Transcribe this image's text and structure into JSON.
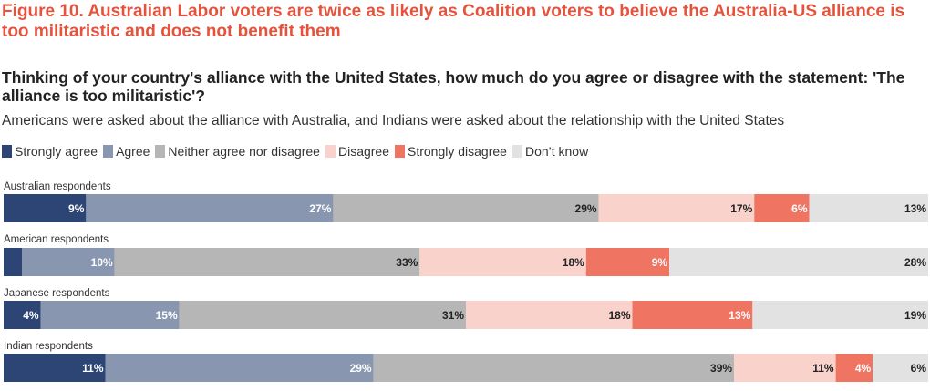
{
  "title": "Figure 10. Australian Labor voters are twice as likely as Coalition voters to believe the Australia-US alliance is too militaristic and does not benefit them",
  "question": "Thinking of your country's alliance with the United States, how much do you agree or disagree with the statement: 'The alliance is too militaristic'?",
  "subtitle": "Americans were asked about the alliance with Australia, and Indians were asked about the relationship with the United States",
  "legend": [
    {
      "label": "Strongly agree",
      "color": "#2d4575"
    },
    {
      "label": "Agree",
      "color": "#8896b0"
    },
    {
      "label": "Neither agree nor disagree",
      "color": "#b6b6b6"
    },
    {
      "label": "Disagree",
      "color": "#f9d2cc"
    },
    {
      "label": "Strongly disagree",
      "color": "#f07462"
    },
    {
      "label": "Don’t know",
      "color": "#e2e2e2"
    }
  ],
  "chart_data": {
    "type": "bar",
    "orientation": "horizontal-stacked-100",
    "categories": [
      "Australian respondents",
      "American respondents",
      "Japanese respondents",
      "Indian respondents"
    ],
    "series": [
      {
        "name": "Strongly agree",
        "values": [
          9,
          2,
          4,
          11
        ],
        "labels": [
          "9%",
          "",
          "4%",
          "11%"
        ]
      },
      {
        "name": "Agree",
        "values": [
          27,
          10,
          15,
          29
        ],
        "labels": [
          "27%",
          "10%",
          "15%",
          "29%"
        ]
      },
      {
        "name": "Neither agree nor disagree",
        "values": [
          29,
          33,
          31,
          39
        ],
        "labels": [
          "29%",
          "33%",
          "31%",
          "39%"
        ]
      },
      {
        "name": "Disagree",
        "values": [
          17,
          18,
          18,
          11
        ],
        "labels": [
          "17%",
          "18%",
          "18%",
          "11%"
        ]
      },
      {
        "name": "Strongly disagree",
        "values": [
          6,
          9,
          13,
          4
        ],
        "labels": [
          "6%",
          "9%",
          "13%",
          "4%"
        ]
      },
      {
        "name": "Don’t know",
        "values": [
          13,
          28,
          19,
          6
        ],
        "labels": [
          "13%",
          "28%",
          "19%",
          "6%"
        ]
      }
    ],
    "label_colors": [
      "#ffffff",
      "#ffffff",
      "#222222",
      "#222222",
      "#ffffff",
      "#222222"
    ],
    "xlim": [
      0,
      100
    ]
  }
}
